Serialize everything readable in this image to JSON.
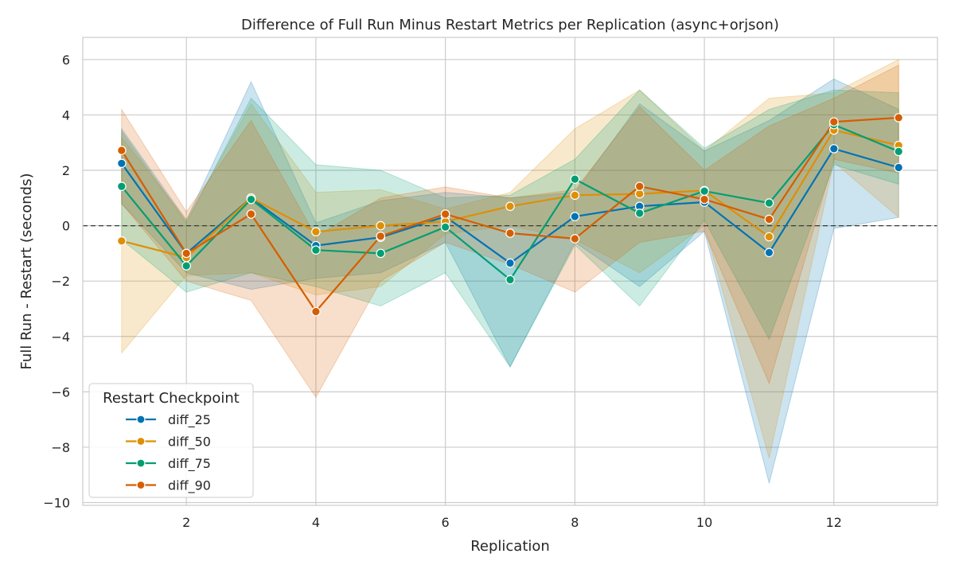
{
  "chart_data": {
    "type": "line",
    "title": "Difference of Full Run Minus Restart Metrics per Replication (async+orjson)",
    "xlabel": "Replication",
    "ylabel": "Full Run - Restart (seconds)",
    "xlim": [
      0.4,
      13.6
    ],
    "ylim": [
      -10.1,
      6.8
    ],
    "xticks": [
      2,
      4,
      6,
      8,
      10,
      12
    ],
    "yticks": [
      -10,
      -8,
      -6,
      -4,
      -2,
      0,
      2,
      4,
      6
    ],
    "ytick_labels": [
      "−10",
      "−8",
      "−6",
      "−4",
      "−2",
      "0",
      "2",
      "4",
      "6"
    ],
    "grid": true,
    "reference_line": 0,
    "legend": {
      "title": "Restart Checkpoint",
      "placement": "lower-left"
    },
    "x": [
      1,
      2,
      3,
      4,
      5,
      6,
      7,
      8,
      9,
      10,
      11,
      12,
      13
    ],
    "series": [
      {
        "name": "diff_25",
        "color": "#0173b2",
        "values": [
          2.25,
          -1.0,
          1.0,
          -0.72,
          -0.42,
          0.33,
          -1.35,
          0.33,
          0.7,
          0.85,
          -0.97,
          2.78,
          2.1
        ],
        "ci_lower": [
          0.8,
          -1.7,
          -2.3,
          -1.9,
          -1.7,
          -0.6,
          -5.1,
          -0.6,
          -2.2,
          -0.2,
          -9.3,
          -0.1,
          0.3
        ],
        "ci_upper": [
          3.5,
          0.2,
          5.2,
          0.1,
          0.9,
          1.2,
          1.0,
          1.2,
          4.4,
          2.7,
          3.8,
          5.3,
          4.2
        ]
      },
      {
        "name": "diff_50",
        "color": "#de8f05",
        "values": [
          -0.55,
          -1.15,
          1.0,
          -0.22,
          0.0,
          0.15,
          0.7,
          1.1,
          1.15,
          1.27,
          -0.4,
          3.45,
          2.9
        ],
        "ci_lower": [
          -4.6,
          -1.8,
          -1.7,
          -2.5,
          -2.2,
          -0.3,
          0.0,
          -0.5,
          -1.7,
          0.0,
          -8.4,
          2.3,
          0.3
        ],
        "ci_upper": [
          3.2,
          0.2,
          4.4,
          1.2,
          1.3,
          0.6,
          1.2,
          3.5,
          4.9,
          2.7,
          4.6,
          4.8,
          6.0
        ]
      },
      {
        "name": "diff_75",
        "color": "#029e73",
        "values": [
          1.42,
          -1.45,
          0.95,
          -0.88,
          -1.0,
          -0.05,
          -1.95,
          1.68,
          0.45,
          1.25,
          0.82,
          3.65,
          2.68
        ],
        "ci_lower": [
          -0.5,
          -2.4,
          -1.7,
          -2.2,
          -2.9,
          -1.7,
          -5.1,
          -0.7,
          -2.9,
          0.2,
          -4.1,
          2.2,
          1.5
        ],
        "ci_upper": [
          3.4,
          0.1,
          4.6,
          2.2,
          2.0,
          1.0,
          1.1,
          2.4,
          4.9,
          2.8,
          4.2,
          4.9,
          4.8
        ]
      },
      {
        "name": "diff_90",
        "color": "#d55e00",
        "values": [
          2.72,
          -1.0,
          0.42,
          -3.1,
          -0.38,
          0.42,
          -0.27,
          -0.47,
          1.42,
          0.95,
          0.23,
          3.75,
          3.9
        ],
        "ci_lower": [
          0.8,
          -2.0,
          -2.7,
          -6.2,
          -2.0,
          -0.6,
          -1.4,
          -2.4,
          -0.6,
          -0.2,
          -5.7,
          2.4,
          1.9
        ],
        "ci_upper": [
          4.2,
          0.5,
          3.8,
          -0.4,
          1.0,
          1.4,
          1.0,
          1.3,
          4.3,
          2.0,
          3.6,
          4.6,
          5.8
        ]
      }
    ]
  }
}
